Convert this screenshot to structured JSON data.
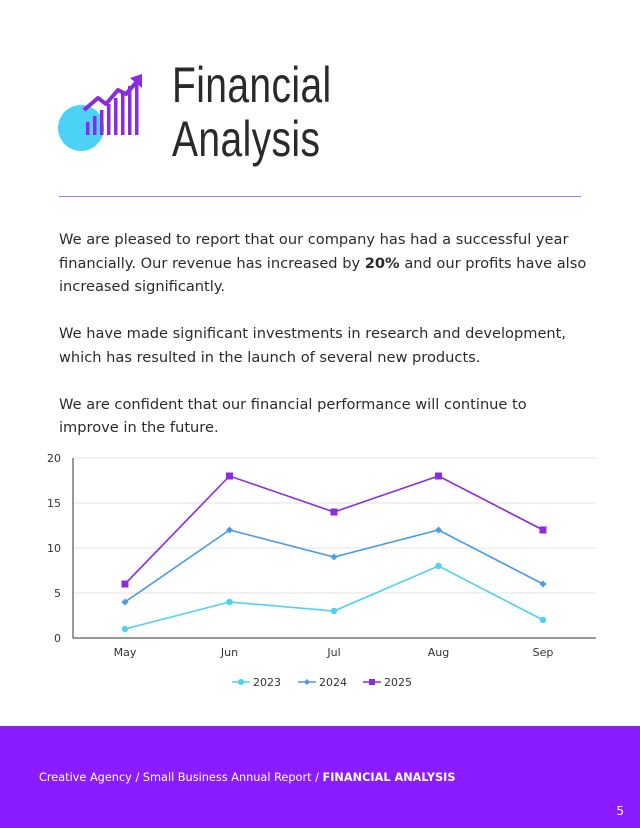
{
  "header": {
    "title_line1": "Financial",
    "title_line2": "Analysis",
    "logo_icon": "growth-chart-icon",
    "colors": {
      "circle": "#4dd2f7",
      "bars": "#8a2be2",
      "divider": "#b06ee0"
    }
  },
  "body": {
    "p1_before": "We are pleased to report that our company has had a successful year financially. Our revenue has increased by ",
    "p1_bold": "20%",
    "p1_after": " and our profits have also increased significantly.",
    "p2": "We have made significant investments in research and development, which has resulted in the launch of several new products.",
    "p3": "We are confident that our financial performance will continue to improve in the future."
  },
  "chart_data": {
    "type": "line",
    "categories": [
      "May",
      "Jun",
      "Jul",
      "Aug",
      "Sep"
    ],
    "ylim": [
      0,
      20
    ],
    "yticks": [
      "0",
      "5",
      "10",
      "15",
      "20"
    ],
    "grid": true,
    "legend": "bottom",
    "series": [
      {
        "name": "2023",
        "values": [
          1,
          4,
          3,
          8,
          2
        ],
        "color": "#4dd2f7",
        "marker": "circle"
      },
      {
        "name": "2024",
        "values": [
          4,
          12,
          9,
          12,
          6
        ],
        "color": "#4a9be8",
        "marker": "diamond"
      },
      {
        "name": "2025",
        "values": [
          6,
          18,
          14,
          18,
          12
        ],
        "color": "#8a2be2",
        "marker": "square"
      }
    ]
  },
  "footer": {
    "breadcrumb_prefix": "Creative Agency / Small Business Annual Report / ",
    "breadcrumb_current": "FINANCIAL ANALYSIS",
    "page_number": "5",
    "background": "#8a1cff"
  }
}
